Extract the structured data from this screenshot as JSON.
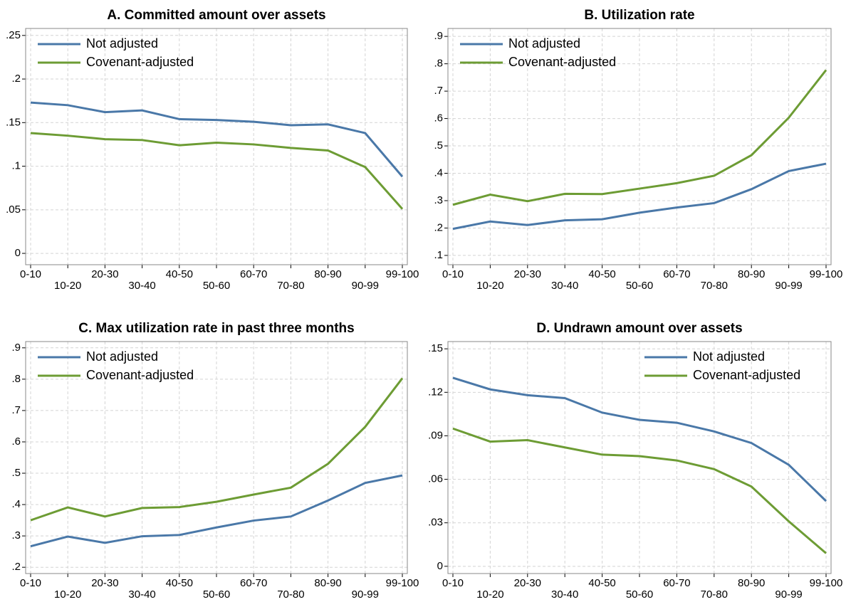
{
  "chart_data": [
    {
      "type": "line",
      "title": "A. Committed amount over assets",
      "categories": [
        "0-10",
        "10-20",
        "20-30",
        "30-40",
        "40-50",
        "50-60",
        "60-70",
        "70-80",
        "80-90",
        "90-99",
        "99-100"
      ],
      "series": [
        {
          "name": "Not adjusted",
          "color": "#4a78a8",
          "values": [
            0.173,
            0.17,
            0.162,
            0.164,
            0.154,
            0.153,
            0.151,
            0.147,
            0.148,
            0.138,
            0.088
          ]
        },
        {
          "name": "Covenant-adjusted",
          "color": "#6d9c34",
          "values": [
            0.138,
            0.135,
            0.131,
            0.13,
            0.124,
            0.127,
            0.125,
            0.121,
            0.118,
            0.099,
            0.051
          ]
        }
      ],
      "ylim": [
        -0.013,
        0.258
      ],
      "yticks": [
        0,
        {
          "value": 0.05,
          "label": ".05"
        },
        {
          "value": 0.1,
          "label": ".1"
        },
        {
          "value": 0.15,
          "label": ".15"
        },
        {
          "value": 0.2,
          "label": ".2"
        },
        {
          "value": 0.25,
          "label": ".25"
        }
      ],
      "grid": true,
      "legend": "upper left"
    },
    {
      "type": "line",
      "title": "B. Utilization rate",
      "categories": [
        "0-10",
        "10-20",
        "20-30",
        "30-40",
        "40-50",
        "50-60",
        "60-70",
        "70-80",
        "80-90",
        "90-99",
        "99-100"
      ],
      "series": [
        {
          "name": "Not adjusted",
          "color": "#4a78a8",
          "values": [
            0.197,
            0.224,
            0.211,
            0.228,
            0.232,
            0.256,
            0.275,
            0.291,
            0.342,
            0.408,
            0.435
          ]
        },
        {
          "name": "Covenant-adjusted",
          "color": "#6d9c34",
          "values": [
            0.285,
            0.322,
            0.298,
            0.325,
            0.324,
            0.344,
            0.364,
            0.391,
            0.466,
            0.603,
            0.777
          ]
        }
      ],
      "ylim": [
        0.066,
        0.929
      ],
      "yticks": [
        {
          "value": 0.1,
          "label": ".1"
        },
        {
          "value": 0.2,
          "label": ".2"
        },
        {
          "value": 0.3,
          "label": ".3"
        },
        {
          "value": 0.4,
          "label": ".4"
        },
        {
          "value": 0.5,
          "label": ".5"
        },
        {
          "value": 0.6,
          "label": ".6"
        },
        {
          "value": 0.7,
          "label": ".7"
        },
        {
          "value": 0.8,
          "label": ".8"
        },
        {
          "value": 0.9,
          "label": ".9"
        }
      ],
      "grid": true,
      "legend": "upper left"
    },
    {
      "type": "line",
      "title": "C. Max utilization rate in past three months",
      "categories": [
        "0-10",
        "10-20",
        "20-30",
        "30-40",
        "40-50",
        "50-60",
        "60-70",
        "70-80",
        "80-90",
        "90-99",
        "99-100"
      ],
      "series": [
        {
          "name": "Not adjusted",
          "color": "#4a78a8",
          "values": [
            0.267,
            0.298,
            0.278,
            0.299,
            0.303,
            0.327,
            0.349,
            0.362,
            0.413,
            0.469,
            0.493
          ]
        },
        {
          "name": "Covenant-adjusted",
          "color": "#6d9c34",
          "values": [
            0.35,
            0.391,
            0.362,
            0.389,
            0.392,
            0.409,
            0.432,
            0.454,
            0.53,
            0.648,
            0.803
          ]
        }
      ],
      "ylim": [
        0.18,
        0.92
      ],
      "yticks": [
        {
          "value": 0.2,
          "label": ".2"
        },
        {
          "value": 0.3,
          "label": ".3"
        },
        {
          "value": 0.4,
          "label": ".4"
        },
        {
          "value": 0.5,
          "label": ".5"
        },
        {
          "value": 0.6,
          "label": ".6"
        },
        {
          "value": 0.7,
          "label": ".7"
        },
        {
          "value": 0.8,
          "label": ".8"
        },
        {
          "value": 0.9,
          "label": ".9"
        }
      ],
      "grid": true,
      "legend": "upper left"
    },
    {
      "type": "line",
      "title": "D. Undrawn amount over assets",
      "categories": [
        "0-10",
        "10-20",
        "20-30",
        "30-40",
        "40-50",
        "50-60",
        "60-70",
        "70-80",
        "80-90",
        "90-99",
        "99-100"
      ],
      "series": [
        {
          "name": "Not adjusted",
          "color": "#4a78a8",
          "values": [
            0.13,
            0.122,
            0.118,
            0.116,
            0.106,
            0.101,
            0.099,
            0.093,
            0.085,
            0.07,
            0.045
          ]
        },
        {
          "name": "Covenant-adjusted",
          "color": "#6d9c34",
          "values": [
            0.095,
            0.086,
            0.087,
            0.082,
            0.077,
            0.076,
            0.073,
            0.067,
            0.055,
            0.031,
            0.009
          ]
        }
      ],
      "ylim": [
        -0.005,
        0.155
      ],
      "yticks": [
        0,
        {
          "value": 0.03,
          "label": ".03"
        },
        {
          "value": 0.06,
          "label": ".06"
        },
        {
          "value": 0.09,
          "label": ".09"
        },
        {
          "value": 0.12,
          "label": ".12"
        },
        {
          "value": 0.15,
          "label": ".15"
        }
      ],
      "grid": true,
      "legend": "upper right"
    }
  ]
}
